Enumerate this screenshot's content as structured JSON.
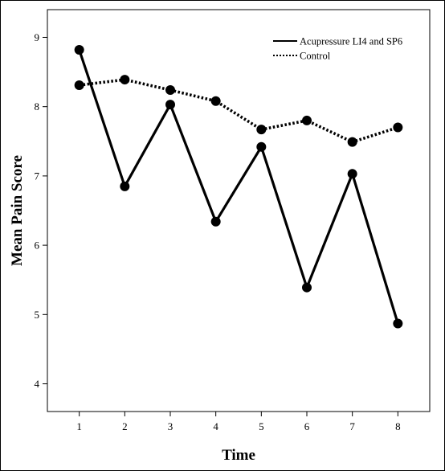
{
  "chart_data": {
    "type": "line",
    "title": "",
    "xlabel": "Time",
    "ylabel": "Mean Pain Score",
    "x": [
      1,
      2,
      3,
      4,
      5,
      6,
      7,
      8
    ],
    "xlim": [
      0.3,
      8.7
    ],
    "ylim": [
      3.6,
      9.4
    ],
    "yticks": [
      4,
      5,
      6,
      7,
      8,
      9
    ],
    "grid": false,
    "legend_position": "top-right",
    "series": [
      {
        "name": "Acupressure LI4 and SP6",
        "style": "solid",
        "color": "#000000",
        "values": [
          8.82,
          6.85,
          8.03,
          6.34,
          7.42,
          5.39,
          7.03,
          4.87
        ]
      },
      {
        "name": "Control",
        "style": "dotted",
        "color": "#000000",
        "values": [
          8.31,
          8.39,
          8.24,
          8.08,
          7.67,
          7.8,
          7.49,
          7.7
        ]
      }
    ]
  }
}
